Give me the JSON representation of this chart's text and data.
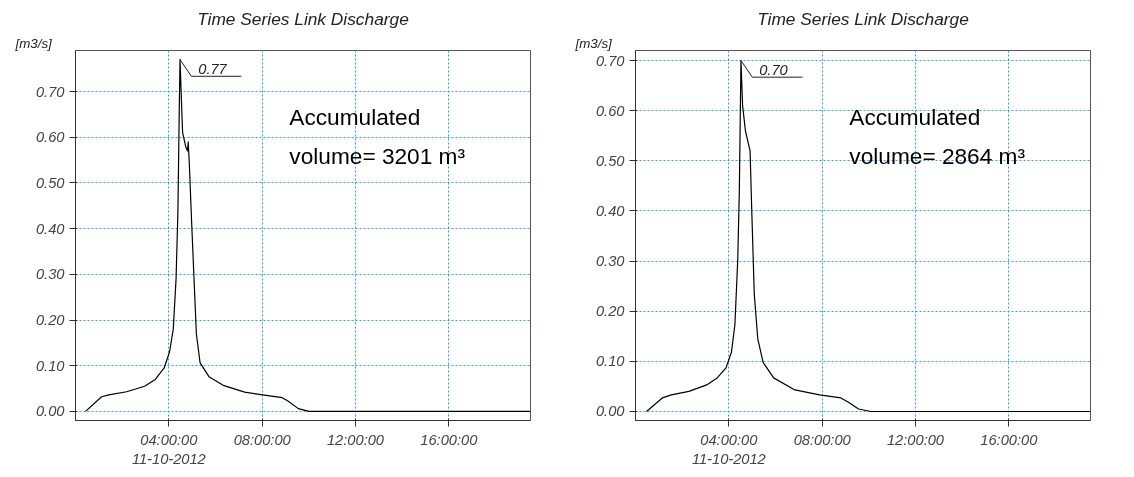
{
  "chart_data": [
    {
      "type": "line",
      "title": "Time Series Link Discharge",
      "ylabel": "[m3/s]",
      "xlabel": null,
      "x": [
        0.43,
        1.12,
        1.43,
        2.19,
        2.96,
        3.42,
        3.8,
        4.03,
        4.19,
        4.31,
        4.39,
        4.45,
        4.48,
        4.52,
        4.59,
        4.72,
        4.8,
        4.83,
        4.88,
        4.98,
        5.08,
        5.18,
        5.34,
        5.72,
        6.33,
        7.25,
        8.02,
        8.86,
        9.09,
        9.55,
        10.0,
        19.48
      ],
      "series": [
        {
          "color": "#000000",
          "values": [
            0,
            0.032,
            0.036,
            0.043,
            0.055,
            0.07,
            0.095,
            0.13,
            0.18,
            0.29,
            0.44,
            0.67,
            0.77,
            0.71,
            0.61,
            0.58,
            0.57,
            0.59,
            0.54,
            0.41,
            0.29,
            0.17,
            0.106,
            0.076,
            0.057,
            0.042,
            0.036,
            0.03,
            0.023,
            0.006,
            0,
            0
          ]
        }
      ],
      "xlim": [
        0,
        19.5
      ],
      "ylim": [
        -0.02,
        0.79
      ],
      "xticks": [
        {
          "value": 4,
          "label": "04:00:00\n11-10-2012"
        },
        {
          "value": 8,
          "label": "08:00:00"
        },
        {
          "value": 12,
          "label": "12:00:00"
        },
        {
          "value": 16,
          "label": "16:00:00"
        }
      ],
      "yticks": [
        {
          "value": 0,
          "label": "0.00"
        },
        {
          "value": 0.1,
          "label": "0.10"
        },
        {
          "value": 0.2,
          "label": "0.20"
        },
        {
          "value": 0.3,
          "label": "0.30"
        },
        {
          "value": 0.4,
          "label": "0.40"
        },
        {
          "value": 0.5,
          "label": "0.50"
        },
        {
          "value": 0.6,
          "label": "0.60"
        },
        {
          "value": 0.7,
          "label": "0.70"
        }
      ],
      "grid": true,
      "line_style": "solid",
      "annotations": [
        {
          "text": "0.77",
          "x": 4.48,
          "y": 0.77
        },
        "Accumulated\nvolume= 3201 m³"
      ]
    },
    {
      "type": "line",
      "title": "Time Series Link Discharge",
      "ylabel": "[m3/s]",
      "x": [
        0.47,
        1.15,
        1.53,
        2.29,
        3.05,
        3.5,
        3.88,
        4.11,
        4.26,
        4.38,
        4.45,
        4.52,
        4.59,
        4.71,
        4.91,
        4.98,
        5.09,
        5.24,
        5.47,
        5.92,
        6.83,
        7.89,
        8.8,
        9.11,
        9.56,
        10.09,
        19.48
      ],
      "series": [
        {
          "color": "#000000",
          "values": [
            0,
            0.027,
            0.033,
            0.04,
            0.053,
            0.067,
            0.087,
            0.118,
            0.173,
            0.3,
            0.44,
            0.7,
            0.61,
            0.56,
            0.52,
            0.405,
            0.234,
            0.145,
            0.098,
            0.067,
            0.043,
            0.033,
            0.027,
            0.019,
            0.005,
            0,
            0
          ]
        }
      ],
      "xlim": [
        0,
        19.5
      ],
      "ylim": [
        -0.018,
        0.72
      ],
      "xticks": [
        {
          "value": 4,
          "label": "04:00:00\n11-10-2012"
        },
        {
          "value": 8,
          "label": "08:00:00"
        },
        {
          "value": 12,
          "label": "12:00:00"
        },
        {
          "value": 16,
          "label": "16:00:00"
        }
      ],
      "yticks": [
        {
          "value": 0,
          "label": "0.00"
        },
        {
          "value": 0.1,
          "label": "0.10"
        },
        {
          "value": 0.2,
          "label": "0.20"
        },
        {
          "value": 0.3,
          "label": "0.30"
        },
        {
          "value": 0.4,
          "label": "0.40"
        },
        {
          "value": 0.5,
          "label": "0.50"
        },
        {
          "value": 0.6,
          "label": "0.60"
        },
        {
          "value": 0.7,
          "label": "0.70"
        }
      ],
      "grid": true,
      "line_style": "solid",
      "annotations": [
        {
          "text": "0.70",
          "x": 4.52,
          "y": 0.7
        },
        "Accumulated\nvolume= 2864 m³"
      ]
    }
  ]
}
